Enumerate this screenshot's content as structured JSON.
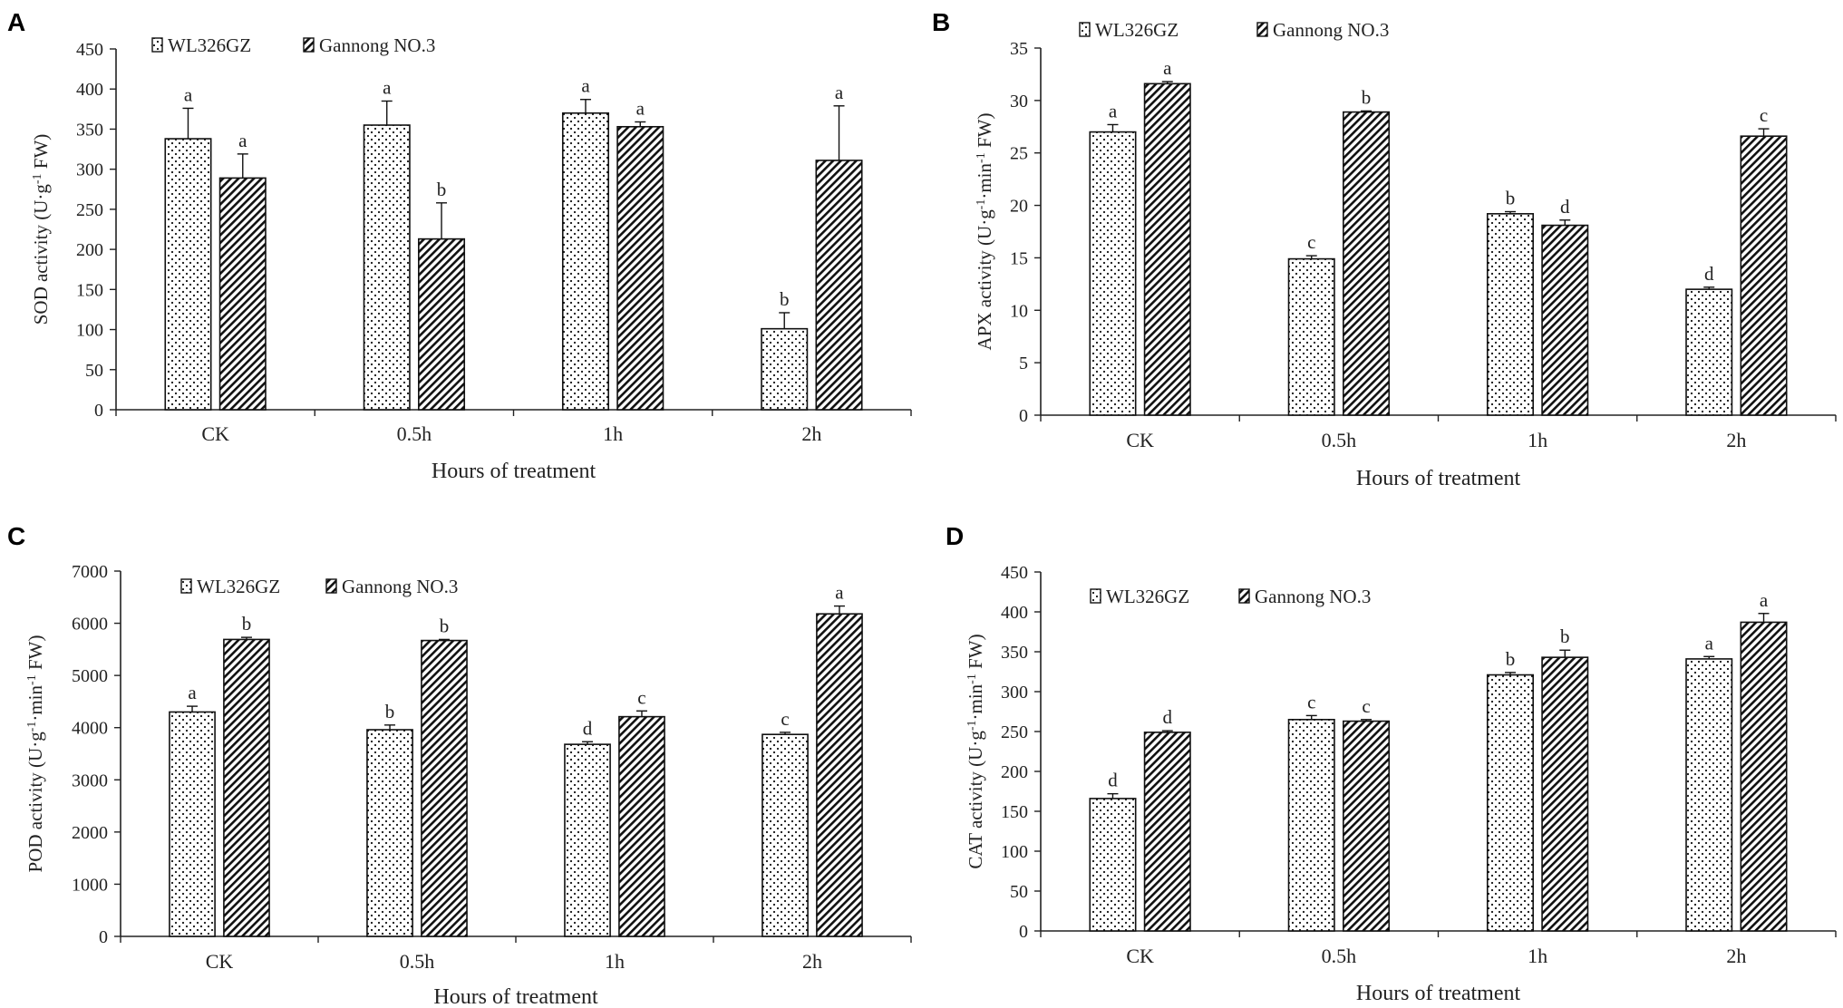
{
  "chart_data": [
    {
      "panel_label": "A",
      "type": "bar",
      "xlabel": "Hours of treatment",
      "ylabel": {
        "pre": "SOD activity (U·g",
        "sup": "-1",
        "post": " FW)"
      },
      "categories": [
        "CK",
        "0.5h",
        "1h",
        "2h"
      ],
      "ylim": [
        0,
        450
      ],
      "yticks": [
        0,
        50,
        100,
        150,
        200,
        250,
        300,
        350,
        400,
        450
      ],
      "legend_position": "top-left",
      "series": [
        {
          "name": "WL326GZ",
          "pattern": "dots",
          "values": [
            338,
            355,
            370,
            101
          ],
          "errors": [
            38,
            30,
            17,
            20
          ],
          "letters": [
            "a",
            "a",
            "a",
            "b"
          ]
        },
        {
          "name": "Gannong NO.3",
          "pattern": "hatch",
          "values": [
            289,
            213,
            353,
            311
          ],
          "errors": [
            30,
            45,
            6,
            68
          ],
          "letters": [
            "a",
            "b",
            "a",
            "a"
          ]
        }
      ]
    },
    {
      "panel_label": "B",
      "type": "bar",
      "xlabel": "Hours of treatment",
      "ylabel": {
        "pre": "APX activity (U·g",
        "sup": "-1",
        "mid": "·min",
        "sup2": "-1",
        "post": " FW)"
      },
      "categories": [
        "CK",
        "0.5h",
        "1h",
        "2h"
      ],
      "ylim": [
        0,
        35
      ],
      "yticks": [
        0,
        5,
        10,
        15,
        20,
        25,
        30,
        35
      ],
      "legend_position": "top-left",
      "series": [
        {
          "name": "WL326GZ",
          "pattern": "dots",
          "values": [
            27.0,
            14.9,
            19.2,
            12.0
          ],
          "errors": [
            0.7,
            0.3,
            0.2,
            0.2
          ],
          "letters": [
            "a",
            "c",
            "b",
            "d"
          ]
        },
        {
          "name": "Gannong NO.3",
          "pattern": "hatch",
          "values": [
            31.6,
            28.9,
            18.1,
            26.6
          ],
          "errors": [
            0.2,
            0.1,
            0.5,
            0.7
          ],
          "letters": [
            "a",
            "b",
            "d",
            "c"
          ]
        }
      ]
    },
    {
      "panel_label": "C",
      "type": "bar",
      "xlabel": "Hours of treatment",
      "ylabel": {
        "pre": "POD activity (U·g",
        "sup": "-1",
        "mid": "·min",
        "sup2": "-1",
        "post": " FW)"
      },
      "categories": [
        "CK",
        "0.5h",
        "1h",
        "2h"
      ],
      "ylim": [
        0,
        7000
      ],
      "yticks": [
        0,
        1000,
        2000,
        3000,
        4000,
        5000,
        6000,
        7000
      ],
      "legend_position": "top-left",
      "series": [
        {
          "name": "WL326GZ",
          "pattern": "dots",
          "values": [
            4300,
            3960,
            3680,
            3870
          ],
          "errors": [
            110,
            90,
            50,
            40
          ],
          "letters": [
            "a",
            "b",
            "d",
            "c"
          ]
        },
        {
          "name": "Gannong NO.3",
          "pattern": "hatch",
          "values": [
            5690,
            5670,
            4210,
            6180
          ],
          "errors": [
            40,
            20,
            110,
            150
          ],
          "letters": [
            "b",
            "b",
            "c",
            "a"
          ]
        }
      ]
    },
    {
      "panel_label": "D",
      "type": "bar",
      "xlabel": "Hours of treatment",
      "ylabel": {
        "pre": "CAT activity  (U·g",
        "sup": "-1",
        "mid": "·min",
        "sup2": "-1",
        "post": " FW)"
      },
      "categories": [
        "CK",
        "0.5h",
        "1h",
        "2h"
      ],
      "ylim": [
        0,
        450
      ],
      "yticks": [
        0,
        50,
        100,
        150,
        200,
        250,
        300,
        350,
        400,
        450
      ],
      "legend_position": "top-left",
      "series": [
        {
          "name": "WL326GZ",
          "pattern": "dots",
          "values": [
            166,
            265,
            321,
            341
          ],
          "errors": [
            6,
            5,
            3,
            3
          ],
          "letters": [
            "d",
            "c",
            "b",
            "a"
          ]
        },
        {
          "name": "Gannong NO.3",
          "pattern": "hatch",
          "values": [
            249,
            263,
            343,
            387
          ],
          "errors": [
            2,
            2,
            9,
            11
          ],
          "letters": [
            "d",
            "c",
            "b",
            "a"
          ]
        }
      ]
    }
  ]
}
